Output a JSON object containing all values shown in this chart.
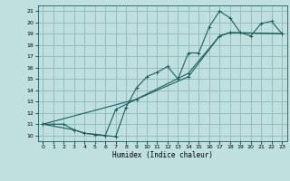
{
  "background_color": "#c0e0e0",
  "grid_color": "#90b8b8",
  "line_color": "#1a6060",
  "xlabel": "Humidex (Indice chaleur)",
  "xlim": [
    -0.5,
    23.5
  ],
  "ylim": [
    9.5,
    21.5
  ],
  "xticks": [
    0,
    1,
    2,
    3,
    4,
    5,
    6,
    7,
    8,
    9,
    10,
    11,
    12,
    13,
    14,
    15,
    16,
    17,
    18,
    19,
    20,
    21,
    22,
    23
  ],
  "yticks": [
    10,
    11,
    12,
    13,
    14,
    15,
    16,
    17,
    18,
    19,
    20,
    21
  ],
  "line1_x": [
    0,
    1,
    2,
    3,
    4,
    5,
    6,
    7,
    8,
    9,
    10,
    11,
    12,
    13,
    14,
    15,
    16,
    17,
    18,
    19,
    20,
    21,
    22,
    23
  ],
  "line1_y": [
    11,
    11,
    11,
    10.5,
    10.2,
    10.1,
    10.0,
    9.9,
    12.5,
    14.2,
    15.2,
    15.6,
    16.1,
    15.0,
    17.3,
    17.3,
    19.6,
    21.0,
    20.4,
    19.1,
    18.8,
    19.9,
    20.1,
    19.0
  ],
  "line2_x": [
    0,
    3,
    4,
    5,
    6,
    7,
    14,
    17,
    18,
    23
  ],
  "line2_y": [
    11,
    10.5,
    10.2,
    10.1,
    10.0,
    12.3,
    15.5,
    18.8,
    19.1,
    19.0
  ],
  "line3_x": [
    0,
    9,
    14,
    17,
    18,
    23
  ],
  "line3_y": [
    11,
    13.2,
    15.2,
    18.8,
    19.1,
    19.0
  ]
}
